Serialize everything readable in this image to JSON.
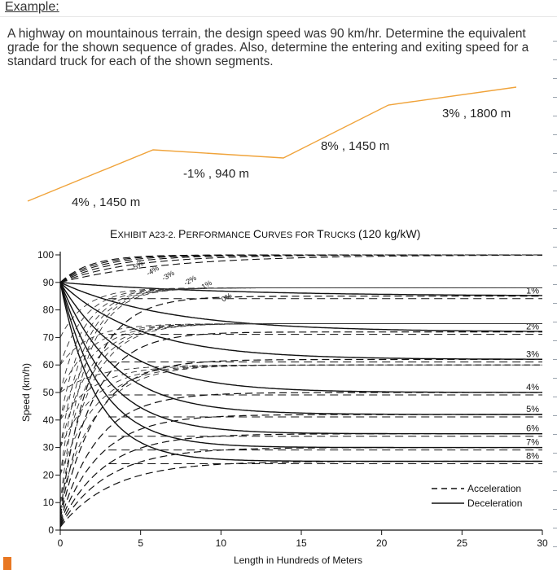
{
  "heading": "Example:",
  "problem_text": "A highway on mountainous terrain, the design speed was 90 km/hr. Determine the equivalent grade for the shown sequence of grades. Also, determine the entering and exiting speed for a standard truck for each of the shown segments.",
  "profile": {
    "line_color": "#f0a33a",
    "segments": [
      {
        "label": "4% , 1450 m",
        "grade": 4,
        "length": 1450
      },
      {
        "label": "-1% , 940 m",
        "grade": -1,
        "length": 940
      },
      {
        "label": "8% , 1450 m",
        "grade": 8,
        "length": 1450
      },
      {
        "label": "3% , 1800 m",
        "grade": 3,
        "length": 1800
      }
    ]
  },
  "exhibit_title": {
    "lead": "E",
    "parts": [
      {
        "cap": "",
        "small": "XHIBIT A23-2. "
      },
      {
        "cap": "P",
        "small": "ERFORMANCE "
      },
      {
        "cap": "C",
        "small": "URVES FOR "
      },
      {
        "cap": "T",
        "small": "RUCKS "
      }
    ],
    "tail": "(120 kg/kW)"
  },
  "chart_data": {
    "type": "line",
    "title": "EXHIBIT A23-2. PERFORMANCE CURVES FOR TRUCKS (120 kg/kW)",
    "xlabel": "Length in Hundreds of Meters",
    "ylabel": "Speed (km/h)",
    "xlim": [
      0,
      30
    ],
    "ylim": [
      0,
      100
    ],
    "xticks": [
      0,
      5,
      10,
      15,
      20,
      25,
      30
    ],
    "yticks": [
      0,
      10,
      20,
      30,
      40,
      50,
      60,
      70,
      80,
      90,
      100
    ],
    "initial_speed": 90,
    "legend": {
      "position": "bottom-right",
      "items": [
        {
          "name": "Acceleration",
          "style": "dashed"
        },
        {
          "name": "Deceleration",
          "style": "solid"
        }
      ]
    },
    "deceleration_series": [
      {
        "grade": "1%",
        "crawl_speed": 85
      },
      {
        "grade": "2%",
        "crawl_speed": 72
      },
      {
        "grade": "3%",
        "crawl_speed": 62
      },
      {
        "grade": "4%",
        "crawl_speed": 50
      },
      {
        "grade": "5%",
        "crawl_speed": 42
      },
      {
        "grade": "6%",
        "crawl_speed": 35
      },
      {
        "grade": "7%",
        "crawl_speed": 30
      },
      {
        "grade": "8%",
        "crawl_speed": 25
      }
    ],
    "acceleration_series": [
      {
        "grade": "-5%"
      },
      {
        "grade": "-4%"
      },
      {
        "grade": "-3%"
      },
      {
        "grade": "-2%"
      },
      {
        "grade": "-1%"
      },
      {
        "grade": "0%"
      },
      {
        "grade": "1%"
      },
      {
        "grade": "2%"
      },
      {
        "grade": "3%"
      },
      {
        "grade": "4%"
      },
      {
        "grade": "5%"
      },
      {
        "grade": "6%"
      },
      {
        "grade": "7%"
      },
      {
        "grade": "8%"
      }
    ],
    "acceleration_labels": [
      "-5%",
      "-4%",
      "-3%",
      "-2%",
      "-1%",
      "0%"
    ]
  }
}
